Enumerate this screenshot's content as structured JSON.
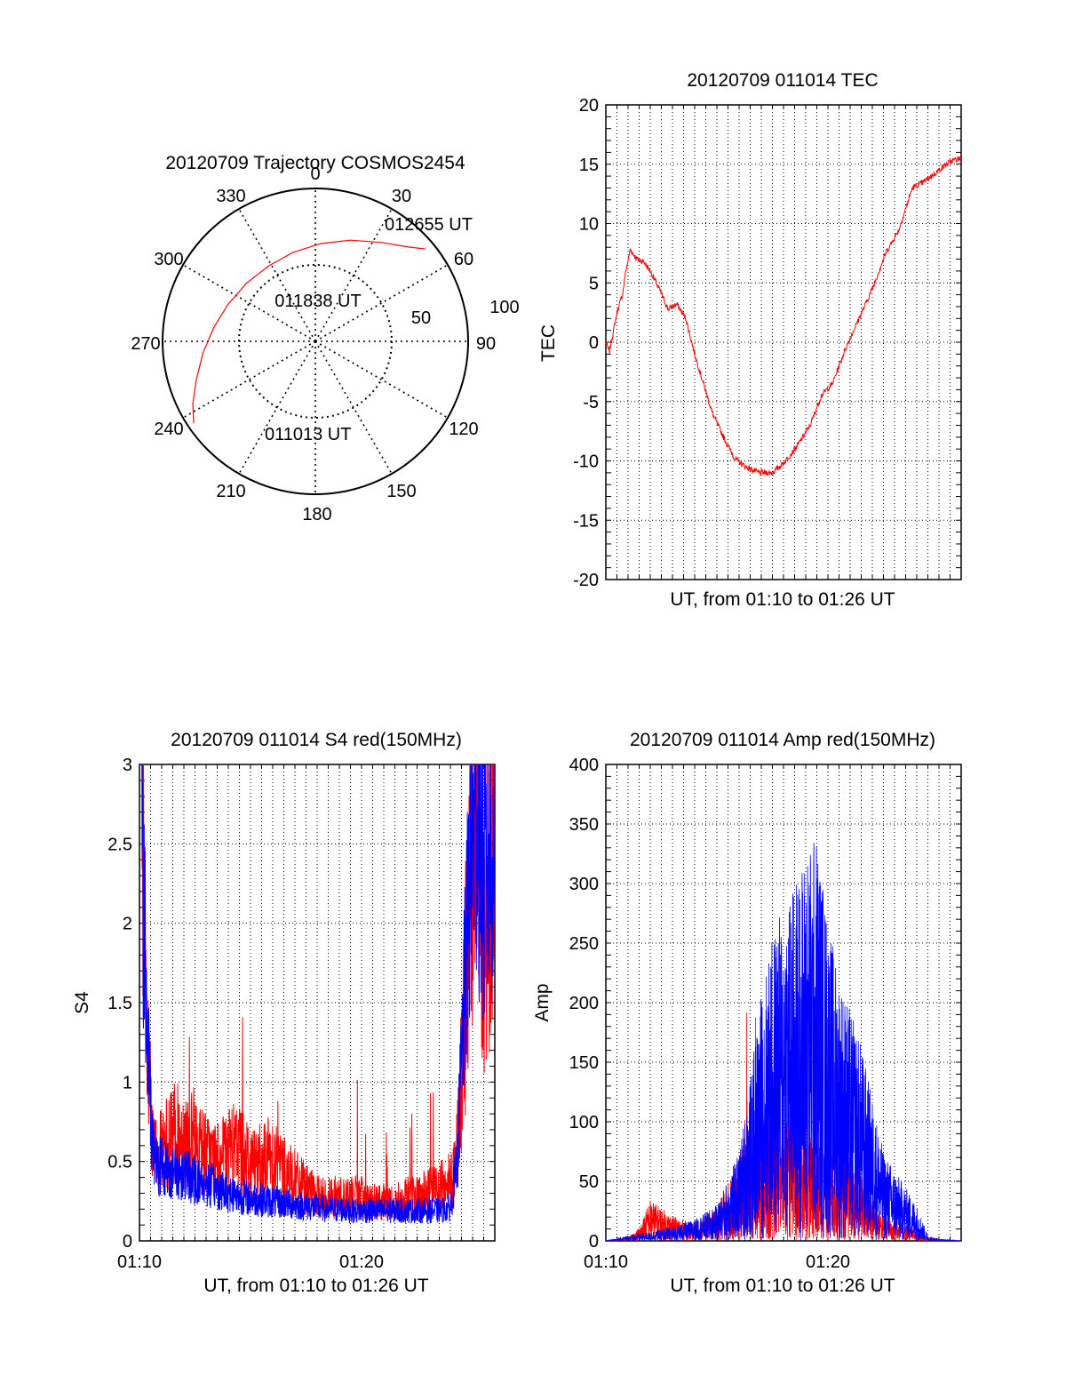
{
  "colors": {
    "red": "#ff0000",
    "blue": "#0000ff",
    "grid": "#000000",
    "axes": "#000000"
  },
  "chart_data": [
    {
      "type": "polar",
      "title": "20120709 Trajectory COSMOS2454",
      "angle_labels": [
        "0",
        "30",
        "60",
        "90",
        "120",
        "150",
        "180",
        "210",
        "240",
        "270",
        "300",
        "330"
      ],
      "radial_labels": [
        "50",
        "100"
      ],
      "rlim": [
        0,
        100
      ],
      "grid": true,
      "series": [
        {
          "color": "red",
          "azimuth_deg": [
            236,
            243,
            252,
            264,
            278,
            293,
            310,
            328,
            346,
            3,
            19,
            34,
            44,
            50
          ],
          "radius": [
            96,
            90,
            82,
            74,
            67,
            62,
            59,
            58,
            60,
            64,
            70,
            78,
            86,
            94
          ]
        }
      ],
      "annotations": [
        "011013 UT",
        "011838 UT",
        "012655 UT"
      ]
    },
    {
      "type": "line",
      "title": "20120709 011014 TEC",
      "xlabel": "UT, from 01:10 to 01:26 UT",
      "ylabel": "TEC",
      "ylim": [
        -20,
        20
      ],
      "yticks": [
        "20",
        "15",
        "10",
        "5",
        "0",
        "-5",
        "-10",
        "-15",
        "-20"
      ],
      "grid": true,
      "series": [
        {
          "color": "red",
          "x_minutes": [
            0,
            0.15,
            0.3,
            0.5,
            0.75,
            0.9,
            1.1,
            1.4,
            1.7,
            2.0,
            2.4,
            2.8,
            3.2,
            3.6,
            4.0,
            4.4,
            4.8,
            5.3,
            5.8,
            6.3,
            6.9,
            7.5,
            8.0,
            8.6,
            9.2,
            9.7,
            10.2,
            10.8,
            11.4,
            12.0,
            12.6,
            13.2,
            13.8,
            14.3,
            14.8,
            15.2,
            15.6,
            16.0
          ],
          "values": [
            0,
            -0.8,
            0.5,
            2.5,
            4.0,
            6.0,
            7.8,
            7.0,
            6.8,
            6.0,
            4.5,
            2.8,
            3.2,
            2.0,
            -1.0,
            -3.5,
            -6.0,
            -8.0,
            -9.8,
            -10.5,
            -11.0,
            -11.0,
            -10.2,
            -8.8,
            -7.0,
            -4.5,
            -3.5,
            -0.5,
            2.0,
            4.5,
            7.5,
            9.5,
            13.0,
            13.5,
            14.2,
            14.8,
            15.3,
            15.5
          ]
        }
      ]
    },
    {
      "type": "line",
      "title": "20120709 011014 S4 red(150MHz)",
      "xlabel": "UT, from 01:10 to 01:26 UT",
      "ylabel": "S4",
      "ylim": [
        0,
        3
      ],
      "xticks": [
        "01:10",
        "01:20"
      ],
      "yticks": [
        "3",
        "2.5",
        "2",
        "1.5",
        "1",
        "0.5",
        "0"
      ],
      "grid": true,
      "series": [
        {
          "color": "red",
          "x_minutes": [
            0.1,
            0.3,
            0.6,
            1.0,
            1.5,
            2.0,
            2.5,
            3.0,
            3.5,
            4.0,
            4.5,
            5.0,
            5.5,
            6.0,
            6.5,
            7.0,
            7.5,
            8.0,
            8.5,
            9.0,
            9.5,
            10.0,
            10.5,
            11.0,
            11.5,
            12.0,
            12.5,
            13.0,
            13.5,
            14.0,
            14.3,
            14.6,
            14.9,
            15.2,
            15.5,
            15.8
          ],
          "values": [
            2.5,
            1.2,
            0.5,
            0.5,
            0.6,
            0.6,
            0.55,
            0.5,
            0.45,
            0.5,
            0.55,
            0.45,
            0.45,
            0.5,
            0.4,
            0.35,
            0.3,
            0.25,
            0.25,
            0.25,
            0.25,
            0.25,
            0.22,
            0.22,
            0.22,
            0.25,
            0.25,
            0.28,
            0.3,
            0.35,
            0.5,
            1.2,
            2.2,
            2.8,
            1.8,
            2.2
          ]
        },
        {
          "color": "blue",
          "x_minutes": [
            0.1,
            0.3,
            0.6,
            1.0,
            1.5,
            2.0,
            2.5,
            3.0,
            3.5,
            4.0,
            4.5,
            5.0,
            5.5,
            6.0,
            6.5,
            7.0,
            7.5,
            8.0,
            8.5,
            9.0,
            9.5,
            10.0,
            10.5,
            11.0,
            11.5,
            12.0,
            12.5,
            13.0,
            13.5,
            14.0,
            14.3,
            14.6,
            14.9,
            15.2,
            15.5,
            15.8
          ],
          "values": [
            2.8,
            1.5,
            0.6,
            0.5,
            0.45,
            0.45,
            0.4,
            0.38,
            0.35,
            0.32,
            0.3,
            0.28,
            0.27,
            0.26,
            0.25,
            0.24,
            0.23,
            0.22,
            0.21,
            0.21,
            0.2,
            0.2,
            0.2,
            0.2,
            0.2,
            0.2,
            0.2,
            0.2,
            0.2,
            0.22,
            0.5,
            1.5,
            2.5,
            2.9,
            2.3,
            2.6
          ]
        }
      ]
    },
    {
      "type": "line",
      "title": "20120709 011014 Amp red(150MHz)",
      "xlabel": "UT, from 01:10 to 01:26 UT",
      "ylabel": "Amp",
      "ylim": [
        0,
        400
      ],
      "xticks": [
        "01:10",
        "01:20"
      ],
      "yticks": [
        "400",
        "350",
        "300",
        "250",
        "200",
        "150",
        "100",
        "50",
        "0"
      ],
      "grid": true,
      "series": [
        {
          "color": "red",
          "x_minutes": [
            0,
            1,
            1.5,
            2,
            3,
            4,
            5,
            6,
            6.5,
            7,
            7.5,
            8,
            8.5,
            9,
            9.5,
            10,
            10.5,
            11,
            11.5,
            12,
            12.5,
            13,
            13.5,
            14,
            14.5,
            15,
            16
          ],
          "values": [
            0,
            2,
            8,
            25,
            15,
            10,
            20,
            50,
            70,
            75,
            80,
            80,
            75,
            70,
            60,
            55,
            55,
            50,
            40,
            25,
            15,
            15,
            10,
            5,
            2,
            1,
            0
          ]
        },
        {
          "color": "blue",
          "x_minutes": [
            0,
            1,
            2,
            3,
            4,
            5,
            6,
            6.5,
            7,
            7.5,
            8,
            8.5,
            9,
            9.5,
            10,
            10.5,
            11,
            11.5,
            12,
            12.5,
            13,
            13.5,
            14,
            14.5,
            15,
            16
          ],
          "values": [
            0,
            3,
            5,
            8,
            12,
            20,
            50,
            90,
            140,
            170,
            190,
            200,
            220,
            230,
            180,
            150,
            130,
            110,
            80,
            50,
            40,
            30,
            20,
            3,
            1,
            0
          ]
        }
      ]
    }
  ]
}
